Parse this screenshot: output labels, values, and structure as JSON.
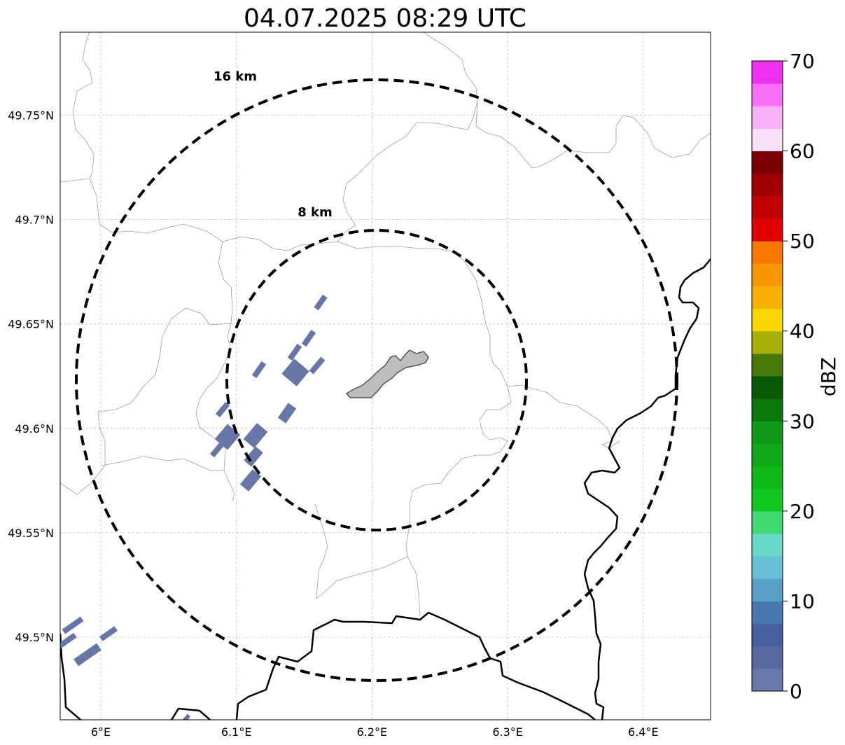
{
  "title": "04.07.2025 08:29 UTC",
  "map": {
    "lon_range": [
      5.97,
      6.45
    ],
    "lat_range": [
      49.46,
      49.79
    ],
    "lon_ticks": [
      {
        "value": 6.0,
        "label": "6°E"
      },
      {
        "value": 6.1,
        "label": "6.1°E"
      },
      {
        "value": 6.2,
        "label": "6.2°E"
      },
      {
        "value": 6.3,
        "label": "6.3°E"
      },
      {
        "value": 6.4,
        "label": "6.4°E"
      }
    ],
    "lat_ticks": [
      {
        "value": 49.5,
        "label": "49.5°N"
      },
      {
        "value": 49.55,
        "label": "49.55°N"
      },
      {
        "value": 49.6,
        "label": "49.6°N"
      },
      {
        "value": 49.65,
        "label": "49.65°N"
      },
      {
        "value": 49.7,
        "label": "49.7°N"
      },
      {
        "value": 49.75,
        "label": "49.75°N"
      }
    ],
    "grid": true,
    "center": {
      "lon": 6.203,
      "lat": 49.623
    },
    "range_rings": [
      {
        "label": "8 km",
        "radius_km": 8
      },
      {
        "label": "16 km",
        "radius_km": 16
      }
    ],
    "colors": {
      "ring": "#000000",
      "border": "#000000",
      "admin": "#9e9e9e",
      "grid": "#bdbdbd",
      "city_fill": "#bdbdbd",
      "city_edge": "#555555",
      "echo": "#6676a8"
    }
  },
  "colorbar": {
    "label": "dBZ",
    "min": 0,
    "max": 70,
    "step": 2.5,
    "ticks": [
      "0",
      "10",
      "20",
      "30",
      "40",
      "50",
      "60",
      "70"
    ],
    "colors": [
      "#6878a8",
      "#5868a0",
      "#4860a0",
      "#4878b0",
      "#58a0c8",
      "#68c0d8",
      "#68d8c8",
      "#40d870",
      "#10c820",
      "#10b818",
      "#10a818",
      "#109818",
      "#087808",
      "#085808",
      "#487808",
      "#a8b008",
      "#f8d800",
      "#f8b000",
      "#f89800",
      "#f87800",
      "#e00000",
      "#c00000",
      "#a00000",
      "#780000",
      "#f8e0f8",
      "#f8b0f8",
      "#f870f8",
      "#f030f0"
    ]
  }
}
